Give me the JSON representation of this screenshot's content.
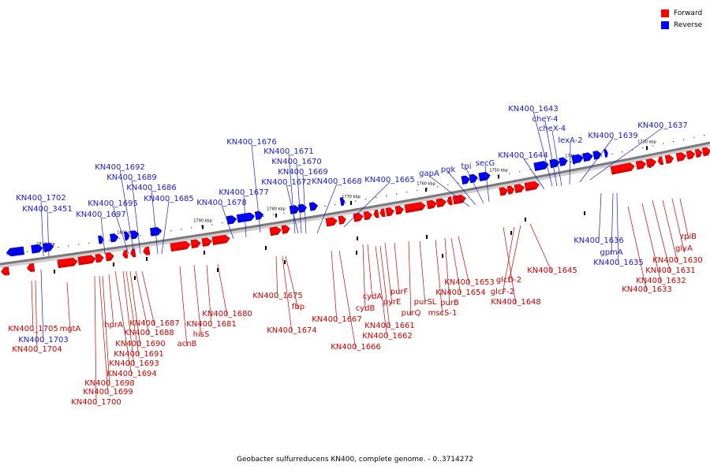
{
  "legend": {
    "forward_label": "Forward",
    "reverse_label": "Reverse",
    "forward_color": "#ff0000",
    "reverse_color": "#0000ff"
  },
  "caption": "Geobacter sulfurreducens KN400, complete genome. - 0..3714272",
  "scale_ticks": [
    "1810 kbp",
    "1800 kbp",
    "1790 kbp",
    "1780 kbp",
    "1770 kbp",
    "1760 kbp",
    "1750 kbp",
    "1740 kbp",
    "1730 kbp"
  ],
  "reverse_labels": [
    "KN400_1643",
    "cheY-4",
    "cheX-4",
    "lexA-2",
    "KN400_1639",
    "KN400_1637",
    "KN400_1676",
    "KN400_1671",
    "KN400_1670",
    "KN400_1669",
    "KN400_1672",
    "KN400_1668",
    "KN400_1665",
    "KN400_1644",
    "gapA",
    "pgk",
    "tpi",
    "secG",
    "KN400_1692",
    "KN400_1689",
    "KN400_1686",
    "KN400_1685",
    "KN400_1677",
    "KN400_1678",
    "KN400_1702",
    "KN400_3451",
    "KN400_1695",
    "KN400_1697",
    "KN400_1636",
    "gpmA",
    "KN400_1635",
    "KN400_1703"
  ],
  "forward_labels": [
    "rpiB",
    "glyA",
    "KN400_1630",
    "KN400_1631",
    "KN400_1632",
    "KN400_1633",
    "KN400_1645",
    "glcD-2",
    "glcF-2",
    "KN400_1648",
    "KN400_1653",
    "KN400_1654",
    "purB",
    "mscS-1",
    "purSL",
    "purQ",
    "purF",
    "pyrE",
    "cydA",
    "cydB",
    "KN400_1661",
    "KN400_1662",
    "KN400_1667",
    "KN400_1666",
    "KN400_1675",
    "fbp",
    "KN400_1674",
    "KN400_1680",
    "KN400_1681",
    "hisS",
    "acnB",
    "KN400_1687",
    "KN400_1688",
    "KN400_1690",
    "KN400_1691",
    "KN400_1693",
    "KN400_1694",
    "hprA",
    "mgtA",
    "KN400_1698",
    "KN400_1699",
    "KN400_1700",
    "KN400_1705",
    "KN400_1704"
  ]
}
